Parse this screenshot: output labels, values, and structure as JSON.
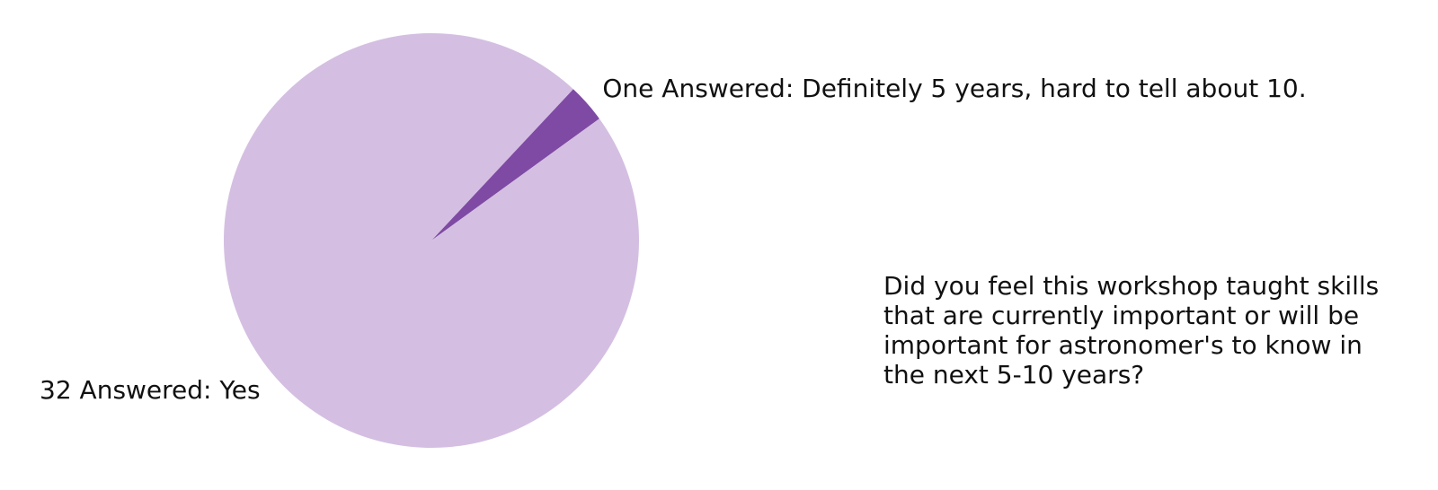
{
  "chart_data": {
    "type": "pie",
    "slices": [
      {
        "label": "One Answered: Definitely 5 years, hard to tell about 10.",
        "value": 1,
        "color": "#7f4aa4"
      },
      {
        "label": "32 Answered: Yes",
        "value": 32,
        "color": "#d4bfe2"
      }
    ],
    "start_angle_deg": 36,
    "direction": "counterclockwise"
  },
  "question": "Did you feel this workshop taught skills\nthat are currently important or will be\nimportant for astronomer's to know in\nthe next 5-10 years?"
}
